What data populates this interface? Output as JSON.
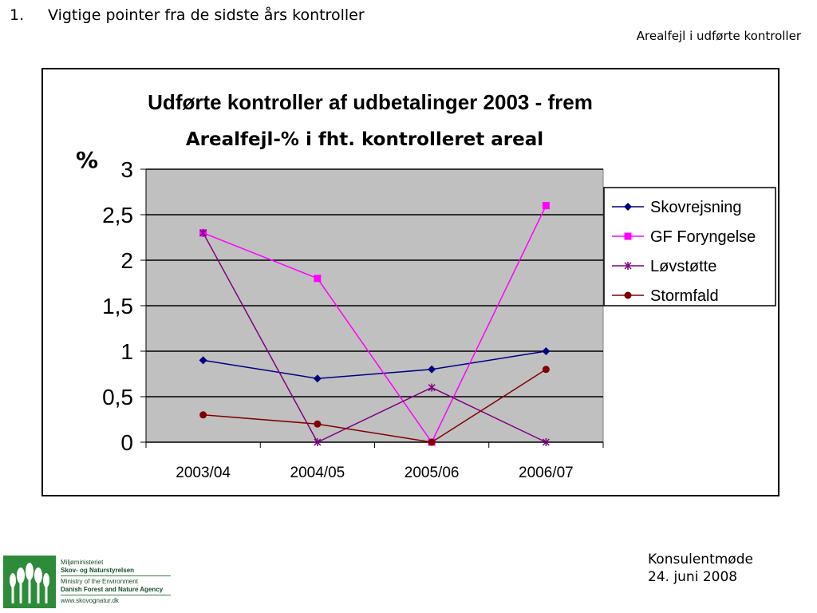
{
  "slide": {
    "heading_number": "1.",
    "heading_text": "Vigtige pointer fra de sidste års kontroller",
    "subheading": "Arealfejl i udførte kontroller",
    "footer_line1": "Konsulentmøde",
    "footer_line2": "24. juni 2008"
  },
  "logo": {
    "line1": "Miljøministeriet",
    "line2": "Skov- og Naturstyrelsen",
    "line3": "Ministry of the Environment",
    "line4": "Danish Forest and Nature Agency",
    "line5": "www.skovognatur.dk",
    "color": "#2e8b3a"
  },
  "chart_data": {
    "type": "line",
    "title": "Udførte kontroller af udbetalinger 2003 - frem",
    "subtitle": "Arealfejl-% i fht. kontrolleret areal",
    "ylabel": "%",
    "xlabel": "",
    "categories": [
      "2003/04",
      "2004/05",
      "2005/06",
      "2006/07"
    ],
    "ylim": [
      0,
      3
    ],
    "yticks": [
      0,
      0.5,
      1,
      1.5,
      2,
      2.5,
      3
    ],
    "ytick_labels": [
      "0",
      "0,5",
      "1",
      "1,5",
      "2",
      "2,5",
      "3"
    ],
    "grid": true,
    "plot_background": "#c0c0c0",
    "legend_position": "right",
    "series": [
      {
        "name": "Skovrejsning",
        "values": [
          0.9,
          0.7,
          0.8,
          1.0
        ],
        "color": "#000080",
        "marker": "diamond"
      },
      {
        "name": "GF Foryngelse",
        "values": [
          2.3,
          1.8,
          0.0,
          2.6
        ],
        "color": "#ff00ff",
        "marker": "square"
      },
      {
        "name": "Løvstøtte",
        "values": [
          2.3,
          0.0,
          0.6,
          0.0
        ],
        "color": "#800080",
        "marker": "star"
      },
      {
        "name": "Stormfald",
        "values": [
          0.3,
          0.2,
          0.0,
          0.8
        ],
        "color": "#800000",
        "marker": "circle"
      }
    ]
  }
}
